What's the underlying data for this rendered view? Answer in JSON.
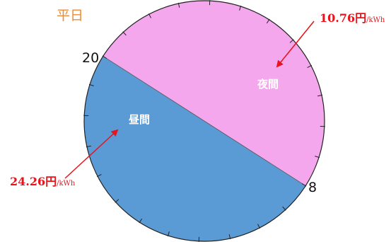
{
  "chart_data": {
    "type": "pie",
    "title": "平日",
    "categories": [
      "夜間",
      "昼間"
    ],
    "hours": [
      {
        "name": "夜間",
        "start_hour": 20,
        "end_hour": 8,
        "color": "#5b9bd5"
      },
      {
        "name": "昼間",
        "start_hour": 8,
        "end_hour": 20,
        "color": "#f4a7ec"
      }
    ],
    "hour_labels": [
      "20",
      "8"
    ],
    "annotations": [
      {
        "name": "night-rate",
        "value": "10.76円",
        "unit": "/kWh",
        "color": "#e8131b",
        "target": "夜間"
      },
      {
        "name": "day-rate",
        "value": "24.26円",
        "unit": "/kWh",
        "color": "#e8131b",
        "target": "昼間"
      }
    ],
    "tick_count": 24
  },
  "colors": {
    "title": "#f08a34",
    "rate": "#e8131b",
    "outline": "#222222",
    "slice_label": "#ffffff"
  }
}
